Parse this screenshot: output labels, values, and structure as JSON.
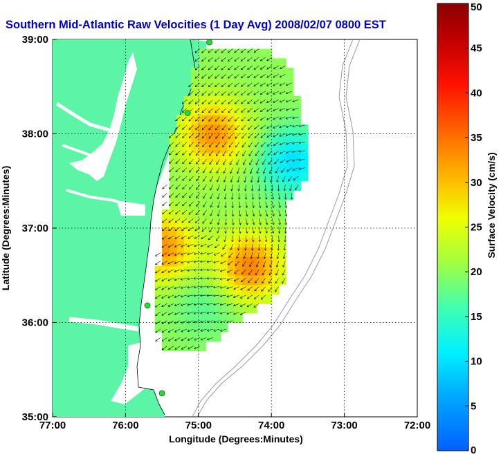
{
  "title": "Southern Mid-Atlantic Raw Velocities (1 Day Avg) 2008/02/07 0800 EST",
  "xlabel": "Longitude (Degrees:Minutes)",
  "ylabel": "Latitude (Degrees:Minutes)",
  "colorbar": {
    "label": "Surface Velocity (cm/s)",
    "ticks": [
      "0",
      "5",
      "10",
      "15",
      "20",
      "25",
      "30",
      "35",
      "40",
      "45",
      "50"
    ],
    "range": [
      0,
      50
    ]
  },
  "chart_data": {
    "type": "heatmap",
    "x_ticks": [
      "77:00",
      "76:00",
      "75:00",
      "74:00",
      "73:00",
      "72:00"
    ],
    "y_ticks": [
      "39:00",
      "38:00",
      "37:00",
      "36:00",
      "35:00"
    ],
    "xlim": [
      -77,
      -72
    ],
    "ylim": [
      35,
      39
    ],
    "grid": true,
    "legend": "colorbar on right",
    "colors": {
      "land": "#5cf5a5",
      "water": "#ffffff",
      "station": "#22dd33",
      "arrow": "#000000",
      "title": "#0000cc",
      "bathymetry": "#999999"
    },
    "stations": [
      {
        "lon": -74.85,
        "lat": 38.97
      },
      {
        "lon": -75.15,
        "lat": 38.22
      },
      {
        "lon": -75.7,
        "lat": 36.18
      },
      {
        "lon": -75.5,
        "lat": 35.25
      }
    ],
    "velocity_field_hotspots_cm_s": [
      {
        "lon": -74.8,
        "lat": 38.0,
        "speed": 33
      },
      {
        "lon": -74.3,
        "lat": 36.6,
        "speed": 34
      },
      {
        "lon": -75.5,
        "lat": 36.8,
        "speed": 33
      },
      {
        "lon": -73.7,
        "lat": 37.7,
        "speed": 10
      },
      {
        "lon": -74.9,
        "lat": 36.2,
        "speed": 17
      }
    ]
  }
}
